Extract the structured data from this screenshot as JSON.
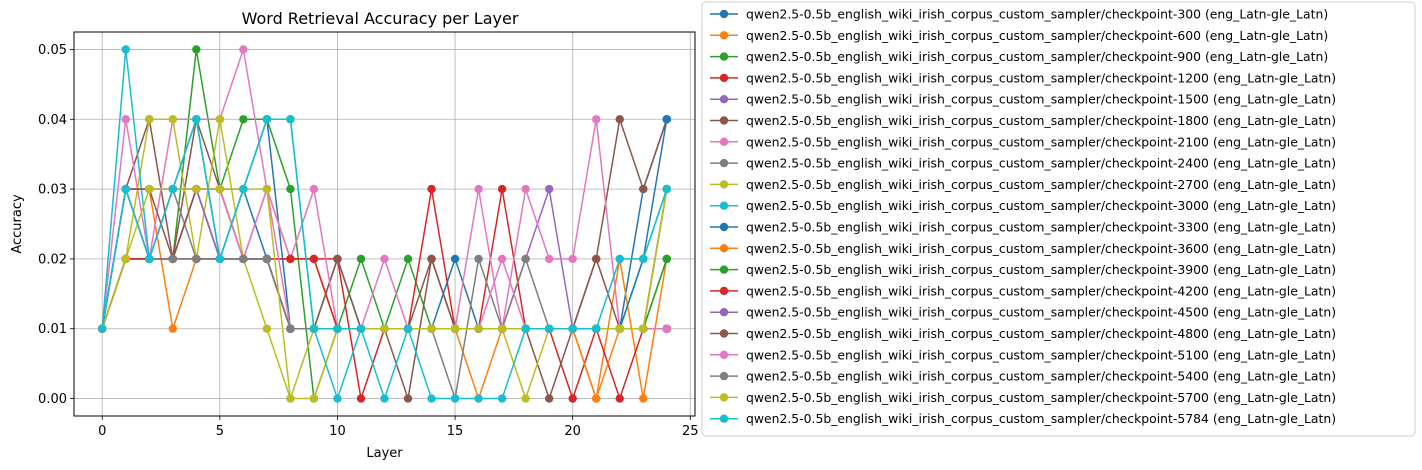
{
  "chart_data": {
    "type": "line",
    "title": "Word Retrieval Accuracy per Layer",
    "xlabel": "Layer",
    "ylabel": "Accuracy",
    "xlim": [
      -1.2,
      25.2
    ],
    "ylim": [
      -0.0025,
      0.0525
    ],
    "xticks": [
      "0",
      "5",
      "10",
      "15",
      "20",
      "25"
    ],
    "yticks": [
      "0.00",
      "0.01",
      "0.02",
      "0.03",
      "0.04",
      "0.05"
    ],
    "grid": true,
    "legend_position": "outside-right",
    "marker": "circle",
    "x": [
      0,
      1,
      2,
      3,
      4,
      5,
      6,
      7,
      8,
      9,
      10,
      11,
      12,
      13,
      14,
      15,
      16,
      17,
      18,
      19,
      20,
      21,
      22,
      23,
      24
    ],
    "series": [
      {
        "name": "qwen2.5-0.5b_english_wiki_irish_corpus_custom_sampler/checkpoint-300 (eng_Latn-gle_Latn)",
        "color": "#1f77b4",
        "values": [
          0.01,
          0.03,
          0.02,
          0.02,
          0.03,
          0.02,
          0.03,
          0.04,
          0.01,
          0.01,
          0.02,
          0.01,
          0.01,
          0.01,
          0.01,
          0.02,
          0.01,
          0.01,
          0.01,
          0.01,
          0.01,
          0.01,
          0.01,
          0.03,
          0.04
        ]
      },
      {
        "name": "qwen2.5-0.5b_english_wiki_irish_corpus_custom_sampler/checkpoint-600 (eng_Latn-gle_Latn)",
        "color": "#ff7f0e",
        "values": [
          0.01,
          0.03,
          0.03,
          0.01,
          0.02,
          0.02,
          0.02,
          0.03,
          0.02,
          0.02,
          0.01,
          0.01,
          0.01,
          0.01,
          0.01,
          0.01,
          0.0,
          0.01,
          0.01,
          0.01,
          0.01,
          0.0,
          0.02,
          0.0,
          0.02
        ]
      },
      {
        "name": "qwen2.5-0.5b_english_wiki_irish_corpus_custom_sampler/checkpoint-900 (eng_Latn-gle_Latn)",
        "color": "#2ca02c",
        "values": [
          0.01,
          0.02,
          0.02,
          0.02,
          0.05,
          0.03,
          0.04,
          0.04,
          0.03,
          0.0,
          0.01,
          0.02,
          0.01,
          0.02,
          0.01,
          0.01,
          0.01,
          0.01,
          0.01,
          0.01,
          0.01,
          0.01,
          0.01,
          0.01,
          0.02
        ]
      },
      {
        "name": "qwen2.5-0.5b_english_wiki_irish_corpus_custom_sampler/checkpoint-1200 (eng_Latn-gle_Latn)",
        "color": "#d62728",
        "values": [
          0.01,
          0.02,
          0.02,
          0.02,
          0.03,
          0.02,
          0.02,
          0.02,
          0.02,
          0.02,
          0.02,
          0.0,
          0.01,
          0.01,
          0.03,
          0.01,
          0.01,
          0.03,
          0.01,
          0.01,
          0.0,
          0.01,
          0.0,
          0.01,
          0.01
        ]
      },
      {
        "name": "qwen2.5-0.5b_english_wiki_irish_corpus_custom_sampler/checkpoint-1500 (eng_Latn-gle_Latn)",
        "color": "#9467bd",
        "values": [
          0.01,
          0.03,
          0.03,
          0.03,
          0.04,
          0.02,
          0.02,
          0.02,
          0.01,
          0.01,
          0.01,
          0.01,
          0.01,
          0.01,
          0.01,
          0.01,
          0.01,
          0.01,
          0.02,
          0.03,
          0.01,
          0.01,
          0.01,
          0.01,
          0.01
        ]
      },
      {
        "name": "qwen2.5-0.5b_english_wiki_irish_corpus_custom_sampler/checkpoint-1800 (eng_Latn-gle_Latn)",
        "color": "#8c564b",
        "values": [
          0.01,
          0.03,
          0.04,
          0.02,
          0.04,
          0.03,
          0.02,
          0.02,
          0.01,
          0.01,
          0.02,
          0.01,
          0.01,
          0.0,
          0.02,
          0.01,
          0.01,
          0.01,
          0.01,
          0.0,
          0.01,
          0.02,
          0.04,
          0.03,
          0.04
        ]
      },
      {
        "name": "qwen2.5-0.5b_english_wiki_irish_corpus_custom_sampler/checkpoint-2100 (eng_Latn-gle_Latn)",
        "color": "#e377c2",
        "values": [
          0.01,
          0.04,
          0.02,
          0.04,
          0.04,
          0.04,
          0.05,
          0.03,
          0.02,
          0.03,
          0.01,
          0.01,
          0.02,
          0.01,
          0.01,
          0.01,
          0.03,
          0.01,
          0.03,
          0.02,
          0.02,
          0.04,
          0.01,
          0.01,
          0.03
        ]
      },
      {
        "name": "qwen2.5-0.5b_english_wiki_irish_corpus_custom_sampler/checkpoint-2400 (eng_Latn-gle_Latn)",
        "color": "#7f7f7f",
        "values": [
          0.01,
          0.02,
          0.02,
          0.03,
          0.02,
          0.02,
          0.02,
          0.02,
          0.01,
          0.01,
          0.01,
          0.01,
          0.01,
          0.01,
          0.01,
          0.0,
          0.02,
          0.01,
          0.02,
          0.01,
          0.01,
          0.01,
          0.01,
          0.01,
          0.03
        ]
      },
      {
        "name": "qwen2.5-0.5b_english_wiki_irish_corpus_custom_sampler/checkpoint-2700 (eng_Latn-gle_Latn)",
        "color": "#bcbd22",
        "values": [
          0.01,
          0.02,
          0.04,
          0.04,
          0.02,
          0.04,
          0.02,
          0.01,
          0.0,
          0.0,
          0.01,
          0.01,
          0.01,
          0.01,
          0.01,
          0.01,
          0.01,
          0.01,
          0.0,
          0.01,
          0.01,
          0.01,
          0.01,
          0.01,
          0.03
        ]
      },
      {
        "name": "qwen2.5-0.5b_english_wiki_irish_corpus_custom_sampler/checkpoint-3000 (eng_Latn-gle_Latn)",
        "color": "#17becf",
        "values": [
          0.01,
          0.05,
          0.02,
          0.03,
          0.04,
          0.02,
          0.03,
          0.04,
          0.04,
          0.01,
          0.0,
          0.01,
          0.01,
          0.01,
          0.01,
          0.01,
          0.01,
          0.01,
          0.01,
          0.01,
          0.01,
          0.01,
          0.01,
          0.02,
          0.03
        ]
      },
      {
        "name": "qwen2.5-0.5b_english_wiki_irish_corpus_custom_sampler/checkpoint-3300 (eng_Latn-gle_Latn)",
        "color": "#1f77b4",
        "values": [
          0.01,
          0.03,
          0.02,
          0.03,
          0.03,
          0.03,
          0.03,
          0.02,
          0.01,
          0.01,
          0.01,
          0.01,
          0.01,
          0.01,
          0.01,
          0.01,
          0.01,
          0.01,
          0.01,
          0.01,
          0.01,
          0.01,
          0.01,
          0.02,
          0.04
        ]
      },
      {
        "name": "qwen2.5-0.5b_english_wiki_irish_corpus_custom_sampler/checkpoint-3600 (eng_Latn-gle_Latn)",
        "color": "#ff7f0e",
        "values": [
          0.01,
          0.03,
          0.03,
          0.03,
          0.03,
          0.03,
          0.02,
          0.02,
          0.02,
          0.02,
          0.01,
          0.01,
          0.01,
          0.01,
          0.01,
          0.01,
          0.01,
          0.01,
          0.01,
          0.01,
          0.01,
          0.0,
          0.01,
          0.01,
          0.03
        ]
      },
      {
        "name": "qwen2.5-0.5b_english_wiki_irish_corpus_custom_sampler/checkpoint-3900 (eng_Latn-gle_Latn)",
        "color": "#2ca02c",
        "values": [
          0.01,
          0.02,
          0.02,
          0.02,
          0.02,
          0.02,
          0.02,
          0.02,
          0.01,
          0.01,
          0.01,
          0.01,
          0.01,
          0.01,
          0.01,
          0.01,
          0.01,
          0.01,
          0.01,
          0.01,
          0.01,
          0.01,
          0.01,
          0.01,
          0.02
        ]
      },
      {
        "name": "qwen2.5-0.5b_english_wiki_irish_corpus_custom_sampler/checkpoint-4200 (eng_Latn-gle_Latn)",
        "color": "#d62728",
        "values": [
          0.01,
          0.02,
          0.02,
          0.02,
          0.02,
          0.02,
          0.02,
          0.02,
          0.02,
          0.02,
          0.01,
          0.01,
          0.01,
          0.01,
          0.01,
          0.01,
          0.01,
          0.01,
          0.01,
          0.01,
          0.01,
          0.01,
          0.01,
          0.01,
          0.01
        ]
      },
      {
        "name": "qwen2.5-0.5b_english_wiki_irish_corpus_custom_sampler/checkpoint-4500 (eng_Latn-gle_Latn)",
        "color": "#9467bd",
        "values": [
          0.01,
          0.03,
          0.03,
          0.03,
          0.03,
          0.02,
          0.02,
          0.02,
          0.01,
          0.01,
          0.01,
          0.01,
          0.01,
          0.01,
          0.01,
          0.01,
          0.01,
          0.01,
          0.01,
          0.01,
          0.01,
          0.01,
          0.01,
          0.01,
          0.01
        ]
      },
      {
        "name": "qwen2.5-0.5b_english_wiki_irish_corpus_custom_sampler/checkpoint-4800 (eng_Latn-gle_Latn)",
        "color": "#8c564b",
        "values": [
          0.01,
          0.03,
          0.03,
          0.02,
          0.03,
          0.03,
          0.02,
          0.02,
          0.01,
          0.01,
          0.01,
          0.01,
          0.01,
          0.01,
          0.02,
          0.01,
          0.01,
          0.01,
          0.01,
          0.01,
          0.01,
          0.02,
          0.01,
          0.01,
          0.01
        ]
      },
      {
        "name": "qwen2.5-0.5b_english_wiki_irish_corpus_custom_sampler/checkpoint-5100 (eng_Latn-gle_Latn)",
        "color": "#e377c2",
        "values": [
          0.01,
          0.03,
          0.02,
          0.03,
          0.03,
          0.03,
          0.02,
          0.03,
          0.01,
          0.01,
          0.01,
          0.01,
          0.01,
          0.01,
          0.01,
          0.01,
          0.01,
          0.02,
          0.01,
          0.01,
          0.01,
          0.01,
          0.01,
          0.01,
          0.01
        ]
      },
      {
        "name": "qwen2.5-0.5b_english_wiki_irish_corpus_custom_sampler/checkpoint-5400 (eng_Latn-gle_Latn)",
        "color": "#7f7f7f",
        "values": [
          0.01,
          0.03,
          0.02,
          0.02,
          0.02,
          0.02,
          0.02,
          0.02,
          0.01,
          0.01,
          0.01,
          0.01,
          0.01,
          0.01,
          0.01,
          0.01,
          0.01,
          0.01,
          0.01,
          0.01,
          0.01,
          0.01,
          0.01,
          0.01,
          0.03
        ]
      },
      {
        "name": "qwen2.5-0.5b_english_wiki_irish_corpus_custom_sampler/checkpoint-5700 (eng_Latn-gle_Latn)",
        "color": "#bcbd22",
        "values": [
          0.01,
          0.02,
          0.03,
          0.03,
          0.03,
          0.03,
          0.03,
          0.03,
          0.0,
          0.01,
          0.01,
          0.01,
          0.01,
          0.01,
          0.01,
          0.01,
          0.01,
          0.01,
          0.01,
          0.01,
          0.01,
          0.01,
          0.01,
          0.01,
          0.03
        ]
      },
      {
        "name": "qwen2.5-0.5b_english_wiki_irish_corpus_custom_sampler/checkpoint-5784 (eng_Latn-gle_Latn)",
        "color": "#17becf",
        "values": [
          0.01,
          0.03,
          0.02,
          0.03,
          0.04,
          0.02,
          0.03,
          0.04,
          0.04,
          0.01,
          0.01,
          0.01,
          0.0,
          0.01,
          0.0,
          0.0,
          0.0,
          0.0,
          0.01,
          0.01,
          0.01,
          0.01,
          0.02,
          0.02,
          0.03
        ]
      }
    ]
  }
}
